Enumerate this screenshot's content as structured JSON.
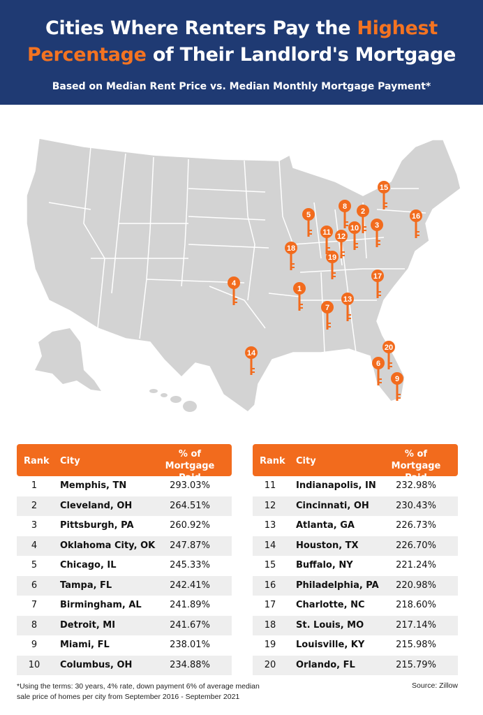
{
  "header": {
    "title_part1": "Cities Where Renters Pay the",
    "title_highlight1": "Highest",
    "title_highlight2": "Percentage",
    "title_part2": "of Their Landlord's Mortgage",
    "subtitle": "Based on Median Rent Price vs. Median Monthly Mortgage Payment*"
  },
  "colors": {
    "header_bg": "#1f3a73",
    "accent": "#f47321",
    "map_fill": "#d3d3d3"
  },
  "map_pins": [
    "1",
    "2",
    "3",
    "4",
    "5",
    "6",
    "7",
    "8",
    "9",
    "10",
    "11",
    "12",
    "13",
    "14",
    "15",
    "16",
    "17",
    "18",
    "19",
    "20"
  ],
  "table": {
    "headers": {
      "rank": "Rank",
      "city": "City",
      "pct_line1": "% of",
      "pct_line2": "Mortgage Paid"
    },
    "left_rows": [
      {
        "rank": "1",
        "city": "Memphis, TN",
        "pct": "293.03%"
      },
      {
        "rank": "2",
        "city": "Cleveland, OH",
        "pct": "264.51%"
      },
      {
        "rank": "3",
        "city": "Pittsburgh, PA",
        "pct": "260.92%"
      },
      {
        "rank": "4",
        "city": "Oklahoma City, OK",
        "pct": "247.87%"
      },
      {
        "rank": "5",
        "city": "Chicago, IL",
        "pct": "245.33%"
      },
      {
        "rank": "6",
        "city": "Tampa, FL",
        "pct": "242.41%"
      },
      {
        "rank": "7",
        "city": "Birmingham, AL",
        "pct": "241.89%"
      },
      {
        "rank": "8",
        "city": "Detroit, MI",
        "pct": "241.67%"
      },
      {
        "rank": "9",
        "city": "Miami, FL",
        "pct": "238.01%"
      },
      {
        "rank": "10",
        "city": "Columbus, OH",
        "pct": "234.88%"
      }
    ],
    "right_rows": [
      {
        "rank": "11",
        "city": "Indianapolis, IN",
        "pct": "232.98%"
      },
      {
        "rank": "12",
        "city": "Cincinnati, OH",
        "pct": "230.43%"
      },
      {
        "rank": "13",
        "city": "Atlanta, GA",
        "pct": "226.73%"
      },
      {
        "rank": "14",
        "city": "Houston, TX",
        "pct": "226.70%"
      },
      {
        "rank": "15",
        "city": "Buffalo, NY",
        "pct": "221.24%"
      },
      {
        "rank": "16",
        "city": "Philadelphia, PA",
        "pct": "220.98%"
      },
      {
        "rank": "17",
        "city": "Charlotte, NC",
        "pct": "218.60%"
      },
      {
        "rank": "18",
        "city": "St. Louis, MO",
        "pct": "217.14%"
      },
      {
        "rank": "19",
        "city": "Louisville, KY",
        "pct": "215.98%"
      },
      {
        "rank": "20",
        "city": "Orlando, FL",
        "pct": "215.79%"
      }
    ]
  },
  "footnote_line1": "*Using the terms: 30 years, 4% rate, down payment 6%  of average median",
  "footnote_line2": "sale price of homes per city from September 2016 - September 2021",
  "source": "Source: Zillow"
}
